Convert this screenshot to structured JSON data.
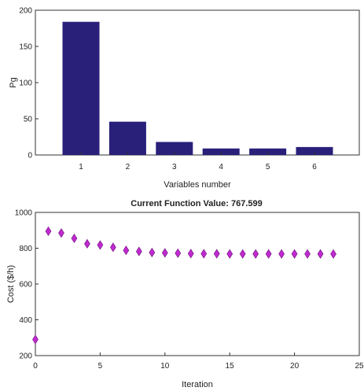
{
  "chart_data": [
    {
      "type": "bar",
      "title": "",
      "xlabel": "Variables number",
      "ylabel": "Pg",
      "categories": [
        "1",
        "2",
        "3",
        "4",
        "5",
        "6"
      ],
      "values": [
        184,
        46,
        18,
        9,
        9,
        11
      ],
      "ylim": [
        0,
        200
      ],
      "yticks": [
        "0",
        "50",
        "100",
        "150",
        "200"
      ],
      "grid": false,
      "bar_color": "#29207a"
    },
    {
      "type": "scatter",
      "title": "Current Function Value: 767.599",
      "xlabel": "Iteration",
      "ylabel": "Cost ($/h)",
      "x": [
        0,
        1,
        2,
        3,
        4,
        5,
        6,
        7,
        8,
        9,
        10,
        11,
        12,
        13,
        14,
        15,
        16,
        17,
        18,
        19,
        20,
        21,
        22,
        23
      ],
      "y": [
        290,
        895,
        885,
        855,
        825,
        818,
        805,
        788,
        782,
        776,
        774,
        772,
        770,
        769,
        769,
        768,
        768,
        768,
        768,
        768,
        768,
        768,
        768,
        767.6
      ],
      "xlim": [
        0,
        25
      ],
      "ylim": [
        200,
        1000
      ],
      "xticks": [
        "0",
        "5",
        "10",
        "15",
        "20",
        "25"
      ],
      "yticks": [
        "200",
        "400",
        "600",
        "800",
        "1000"
      ],
      "grid": false,
      "marker": "diamond",
      "marker_color": "#c02ad0"
    }
  ]
}
